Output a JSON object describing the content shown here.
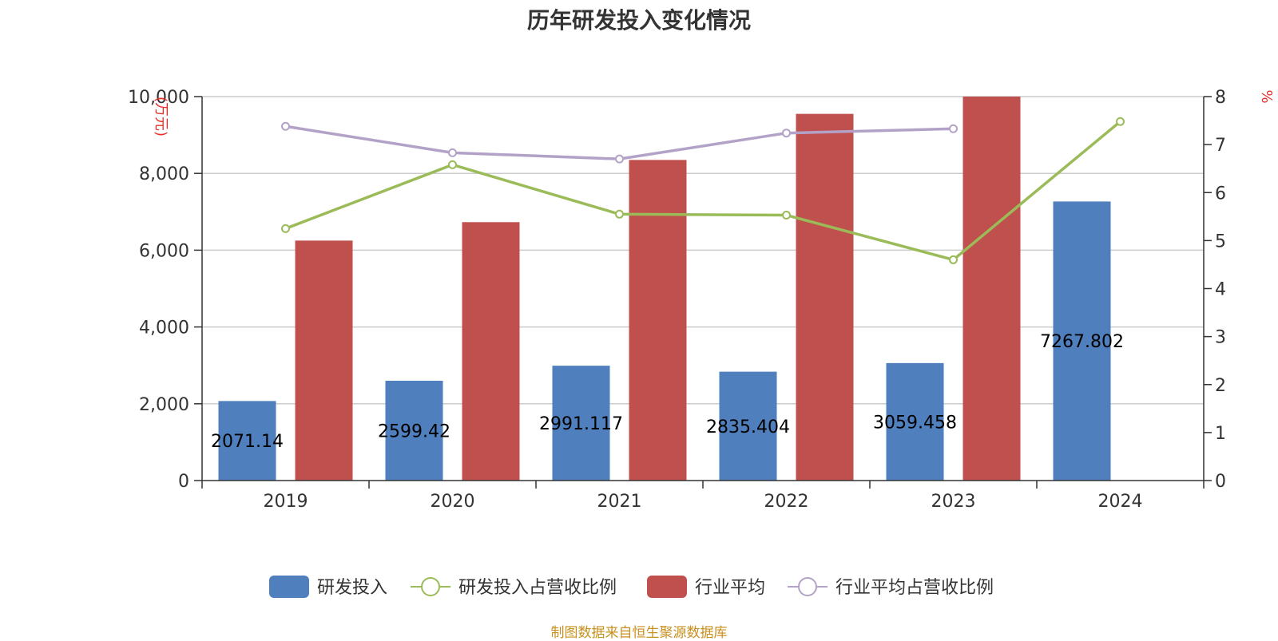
{
  "chart_data": {
    "type": "bar",
    "title": "历年研发投入变化情况",
    "categories": [
      "2019",
      "2020",
      "2021",
      "2022",
      "2023",
      "2024"
    ],
    "y_left": {
      "unit": "(万元)",
      "range": [
        0,
        10000
      ],
      "ticks": [
        "0",
        "2,000",
        "4,000",
        "6,000",
        "8,000",
        "10,000"
      ],
      "tick_values": [
        0,
        2000,
        4000,
        6000,
        8000,
        10000
      ]
    },
    "y_right": {
      "unit": "%",
      "range": [
        0,
        8
      ],
      "ticks": [
        "0",
        "1",
        "2",
        "3",
        "4",
        "5",
        "6",
        "7",
        "8"
      ],
      "tick_values": [
        0,
        1,
        2,
        3,
        4,
        5,
        6,
        7,
        8
      ]
    },
    "grid": true,
    "legend_position": "bottom",
    "series": [
      {
        "name": "研发投入",
        "type": "bar",
        "axis": "left",
        "color": "#4f7fbd",
        "values": [
          2071.14,
          2599.42,
          2991.117,
          2835.404,
          3059.458,
          7267.802
        ],
        "labels": [
          "2071.14",
          "2599.42",
          "2991.117",
          "2835.404",
          "3059.458",
          "7267.802"
        ]
      },
      {
        "name": "研发投入占营收比例",
        "type": "line",
        "axis": "right",
        "color": "#9bbb59",
        "values": [
          5.25,
          6.58,
          5.55,
          5.53,
          4.6,
          7.48
        ]
      },
      {
        "name": "行业平均",
        "type": "bar",
        "axis": "left",
        "color": "#c0504d",
        "values": [
          6250,
          6730,
          8350,
          9550,
          10000,
          null
        ]
      },
      {
        "name": "行业平均占营收比例",
        "type": "line",
        "axis": "right",
        "color": "#b3a2c7",
        "values": [
          7.38,
          6.83,
          6.7,
          7.24,
          7.33,
          null
        ]
      }
    ]
  },
  "source_note": "制图数据来自恒生聚源数据库"
}
